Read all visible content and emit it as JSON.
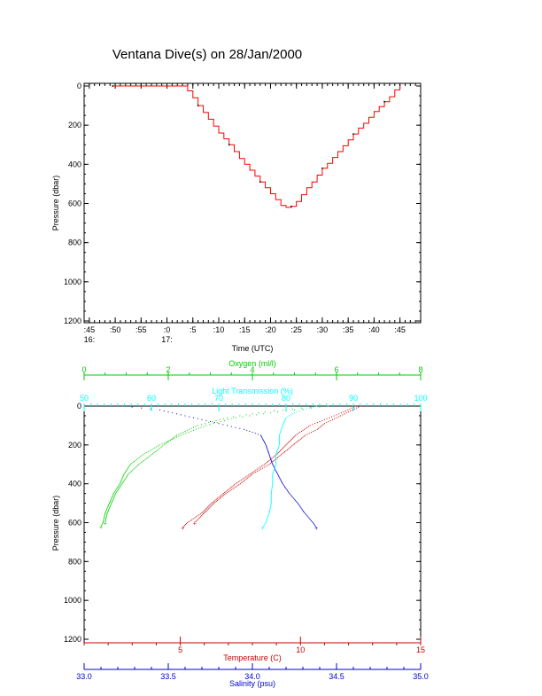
{
  "title": "Ventana Dive(s) on 28/Jan/2000",
  "chart_data": [
    {
      "type": "line",
      "title": "Ventana Dive(s) on 28/Jan/2000",
      "xlabel": "Time (UTC)",
      "ylabel": "Pressure (dbar)",
      "y_inverted": true,
      "ylim": [
        0,
        1200
      ],
      "yticks": [
        "0",
        "200",
        "400",
        "600",
        "800",
        "1000",
        "1200"
      ],
      "xlim": [
        "16:44",
        "17:49"
      ],
      "xticks": [
        {
          "label": ":45",
          "sub": "16:",
          "minute": 45
        },
        {
          "label": ":50",
          "sub": "",
          "minute": 50
        },
        {
          "label": ":55",
          "sub": "",
          "minute": 55
        },
        {
          "label": ":0",
          "sub": "17:",
          "minute": 60
        },
        {
          "label": ":5",
          "sub": "",
          "minute": 65
        },
        {
          "label": ":10",
          "sub": "",
          "minute": 70
        },
        {
          "label": ":15",
          "sub": "",
          "minute": 75
        },
        {
          "label": ":20",
          "sub": "",
          "minute": 80
        },
        {
          "label": ":25",
          "sub": "",
          "minute": 85
        },
        {
          "label": ":30",
          "sub": "",
          "minute": 90
        },
        {
          "label": ":35",
          "sub": "",
          "minute": 95
        },
        {
          "label": ":40",
          "sub": "",
          "minute": 100
        },
        {
          "label": ":45",
          "sub": "",
          "minute": 105
        }
      ],
      "series": [
        {
          "color": "#ff0000",
          "time": [
            "16:49:30",
            "16:55:00",
            "17:00:00",
            "17:03:00",
            "17:04:00",
            "17:05:00",
            "17:06:00",
            "17:07:00",
            "17:08:00",
            "17:09:00",
            "17:10:00",
            "17:11:00",
            "17:12:00",
            "17:13:00",
            "17:14:00",
            "17:15:00",
            "17:16:00",
            "17:17:00",
            "17:18:00",
            "17:19:00",
            "17:20:00",
            "17:21:00",
            "17:22:00",
            "17:23:00",
            "17:24:00",
            "17:25:00",
            "17:26:00",
            "17:27:00",
            "17:28:00",
            "17:29:00",
            "17:30:00",
            "17:31:00",
            "17:32:00",
            "17:33:00",
            "17:34:00",
            "17:35:00",
            "17:36:00",
            "17:37:00",
            "17:38:00",
            "17:39:00",
            "17:40:00",
            "17:41:00",
            "17:42:00",
            "17:43:00",
            "17:44:00",
            "17:45:00"
          ],
          "pressure": [
            0,
            0,
            0,
            0,
            25,
            60,
            100,
            135,
            170,
            205,
            240,
            270,
            300,
            335,
            370,
            400,
            430,
            460,
            490,
            520,
            550,
            580,
            610,
            620,
            615,
            590,
            555,
            520,
            490,
            455,
            420,
            395,
            365,
            335,
            305,
            275,
            245,
            215,
            190,
            160,
            130,
            105,
            80,
            55,
            20,
            0
          ]
        }
      ]
    },
    {
      "type": "scatter",
      "ylabel": "Pressure (dbar)",
      "y_inverted": true,
      "ylim": [
        0,
        1200
      ],
      "yticks": [
        "0",
        "200",
        "400",
        "600",
        "800",
        "1000",
        "1200"
      ],
      "axes": [
        {
          "name": "Oxygen (ml/l)",
          "position": "top",
          "color": "#00cc00",
          "xlim": [
            0,
            8
          ],
          "ticks": [
            "0",
            "2",
            "4",
            "6",
            "8"
          ]
        },
        {
          "name": "Light Transmission (%)",
          "position": "top",
          "color": "#00ffff",
          "xlim": [
            50,
            100
          ],
          "ticks": [
            "50",
            "60",
            "70",
            "80",
            "90",
            "100"
          ]
        },
        {
          "name": "Temperature (C)",
          "position": "bottom",
          "color": "#cc0000",
          "xlim": [
            1,
            15
          ],
          "ticks": [
            "5",
            "10",
            "15"
          ]
        },
        {
          "name": "Salinity (psu)",
          "position": "bottom",
          "color": "#0000cc",
          "xlim": [
            33.0,
            35.0
          ],
          "ticks": [
            "33.0",
            "33.5",
            "34.0",
            "34.5",
            "35.0"
          ]
        }
      ],
      "series": [
        {
          "axis": "Oxygen (ml/l)",
          "color": "#00cc00",
          "pressure": [
            0,
            30,
            60,
            100,
            150,
            200,
            250,
            300,
            350,
            400,
            450,
            500,
            550,
            600,
            620
          ],
          "value": [
            5.8,
            4.6,
            3.6,
            2.9,
            2.3,
            1.8,
            1.4,
            1.1,
            0.95,
            0.85,
            0.7,
            0.6,
            0.5,
            0.45,
            0.4
          ]
        },
        {
          "axis": "Oxygen (ml/l)",
          "color": "#00cc00",
          "pressure": [
            0,
            30,
            60,
            100,
            150,
            200,
            250,
            300,
            350,
            400,
            450,
            500,
            550,
            600
          ],
          "value": [
            5.6,
            4.3,
            3.4,
            2.7,
            2.2,
            1.9,
            1.6,
            1.3,
            1.05,
            0.9,
            0.75,
            0.65,
            0.55,
            0.5
          ]
        },
        {
          "axis": "Temperature (C)",
          "color": "#cc0000",
          "pressure": [
            0,
            30,
            60,
            100,
            150,
            200,
            250,
            300,
            350,
            400,
            450,
            500,
            550,
            600,
            625
          ],
          "value": [
            12.3,
            11.8,
            11.2,
            10.4,
            9.8,
            9.4,
            9.0,
            8.5,
            7.9,
            7.3,
            6.8,
            6.3,
            5.9,
            5.3,
            5.1
          ]
        },
        {
          "axis": "Temperature (C)",
          "color": "#cc0000",
          "pressure": [
            0,
            30,
            60,
            90,
            120,
            150,
            200,
            250,
            300,
            350,
            400,
            450,
            500,
            550,
            600
          ],
          "value": [
            12.5,
            12.0,
            11.5,
            11.0,
            10.7,
            10.2,
            9.7,
            9.2,
            8.7,
            8.0,
            7.5,
            6.9,
            6.4,
            6.0,
            5.6
          ]
        },
        {
          "axis": "Salinity (psu)",
          "color": "#0000cc",
          "pressure": [
            0,
            20,
            40,
            60,
            80,
            100,
            120,
            150,
            200,
            250,
            300,
            350,
            400,
            450,
            500,
            550,
            600,
            625
          ],
          "value": [
            33.23,
            33.45,
            33.55,
            33.65,
            33.75,
            33.85,
            33.95,
            34.05,
            34.08,
            34.1,
            34.12,
            34.15,
            34.18,
            34.22,
            34.27,
            34.31,
            34.36,
            34.38
          ]
        },
        {
          "axis": "Light Transmission (%)",
          "color": "#00ffff",
          "pressure": [
            0,
            30,
            60,
            100,
            150,
            200,
            250,
            300,
            350,
            400,
            450,
            500,
            550,
            600,
            625
          ],
          "value": [
            84.5,
            81.5,
            80.0,
            79.5,
            79.0,
            79.0,
            78.5,
            78.5,
            78.0,
            78.0,
            77.8,
            77.8,
            77.5,
            77.0,
            76.5
          ]
        }
      ]
    }
  ]
}
